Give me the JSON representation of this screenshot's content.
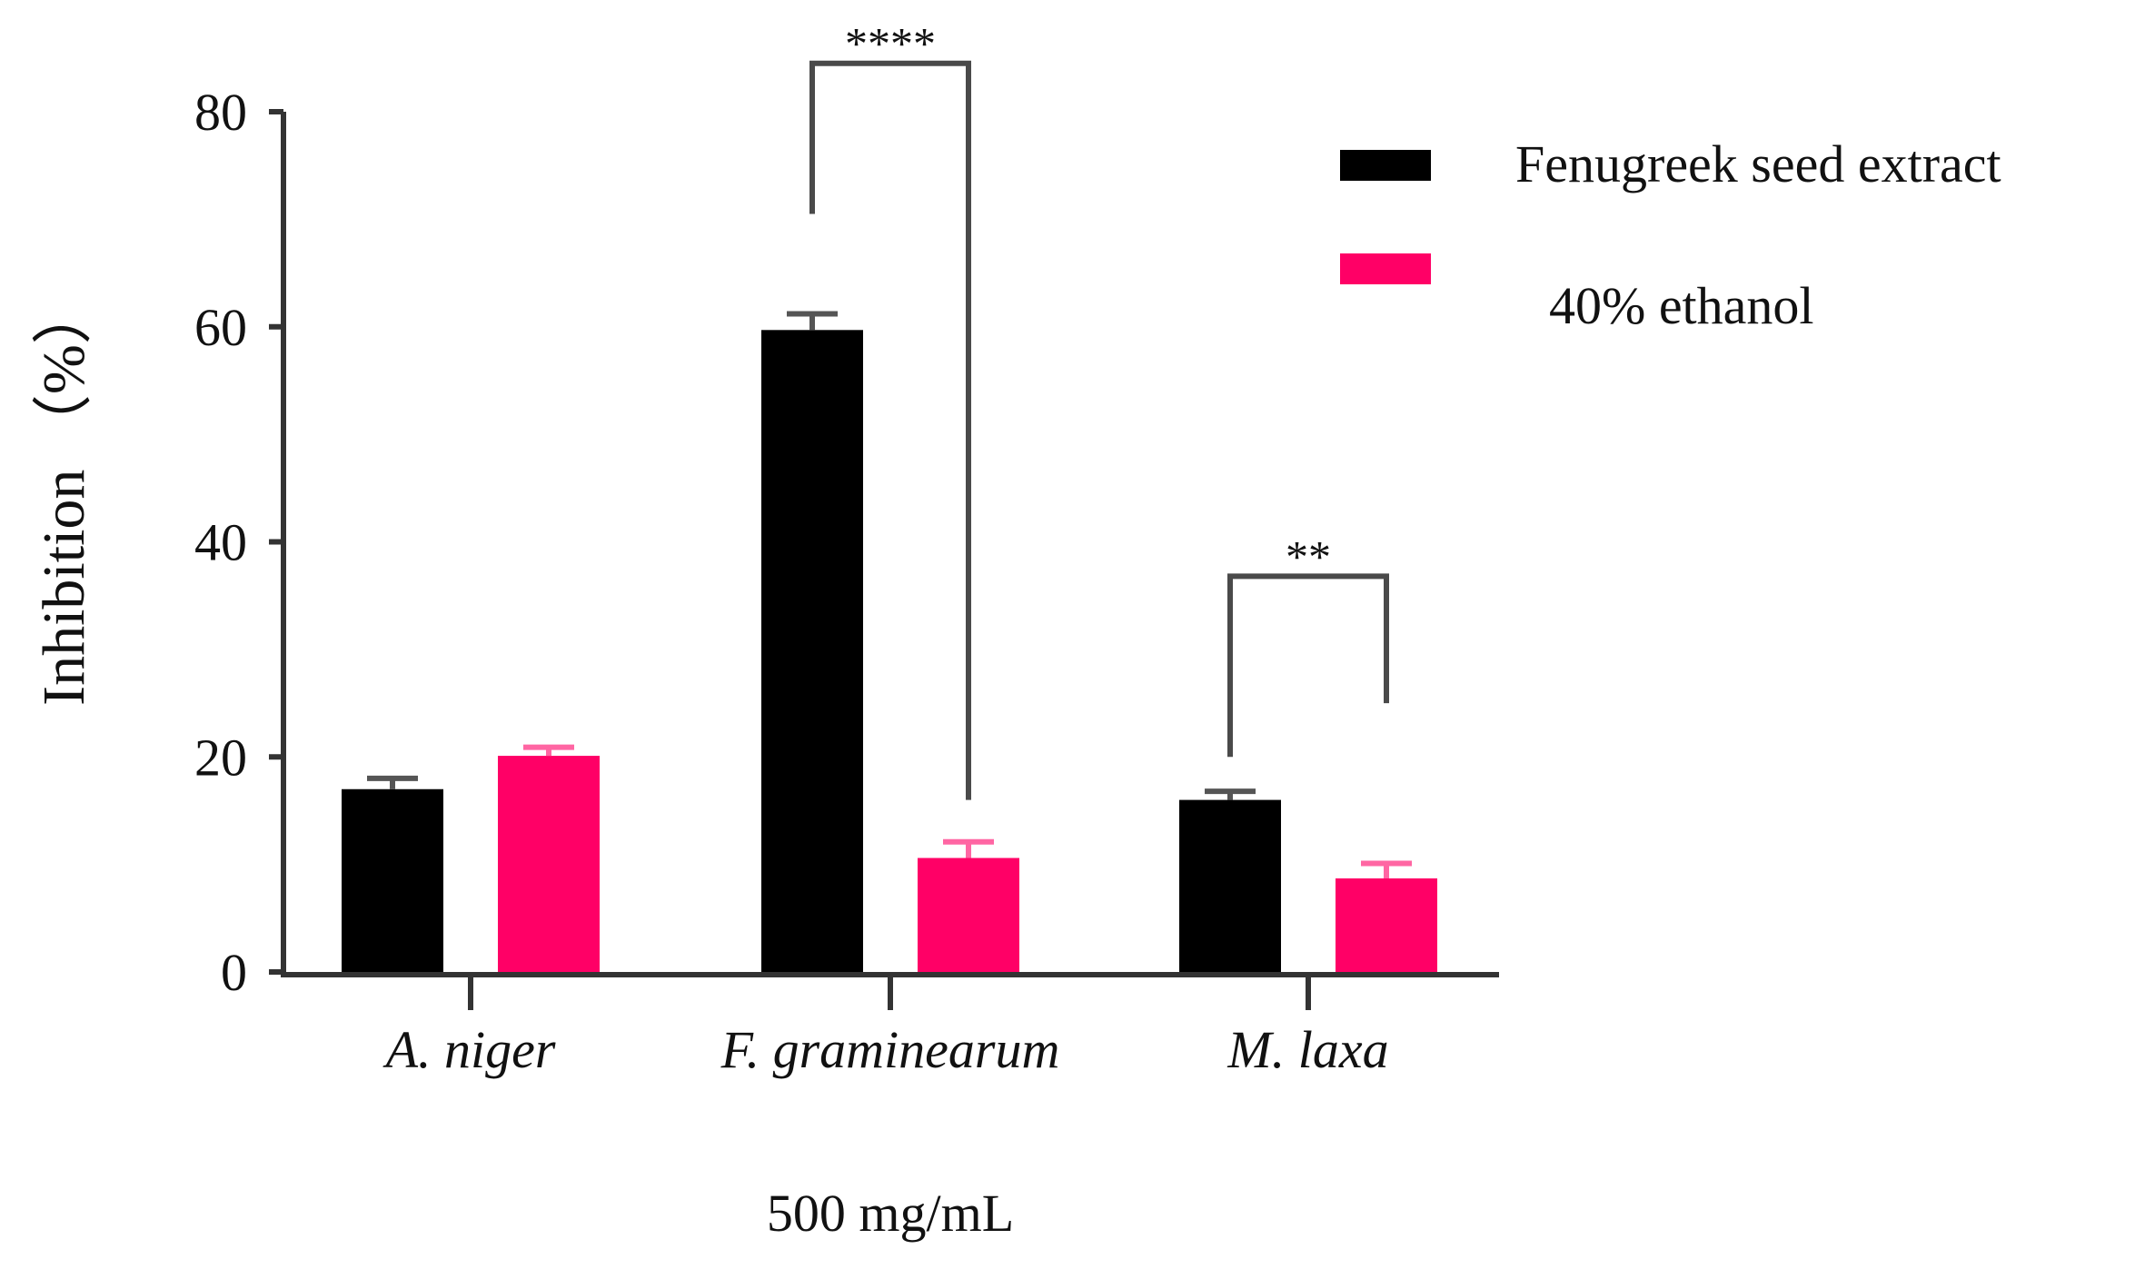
{
  "chart_data": {
    "type": "bar",
    "ylabel": "Inhibition （%）",
    "xlabel": "500 mg/mL",
    "ylim": [
      0,
      80
    ],
    "yticks": [
      0,
      20,
      40,
      60,
      80
    ],
    "categories": [
      "A. niger",
      "F. graminearum",
      "M. laxa"
    ],
    "series": [
      {
        "name": "Fenugreek seed extract",
        "color": "#000000",
        "values": [
          17,
          59.7,
          16
        ],
        "errors": [
          1.0,
          1.5,
          0.8
        ]
      },
      {
        "name": "40% ethanol",
        "color": "#ff0066",
        "values": [
          20.1,
          10.6,
          8.7
        ],
        "errors": [
          0.8,
          1.5,
          1.4
        ]
      }
    ],
    "significance": [
      {
        "category": "F. graminearum",
        "label": "****"
      },
      {
        "category": "M. laxa",
        "label": "**"
      }
    ],
    "grid": false,
    "legend_position": "top-right"
  }
}
